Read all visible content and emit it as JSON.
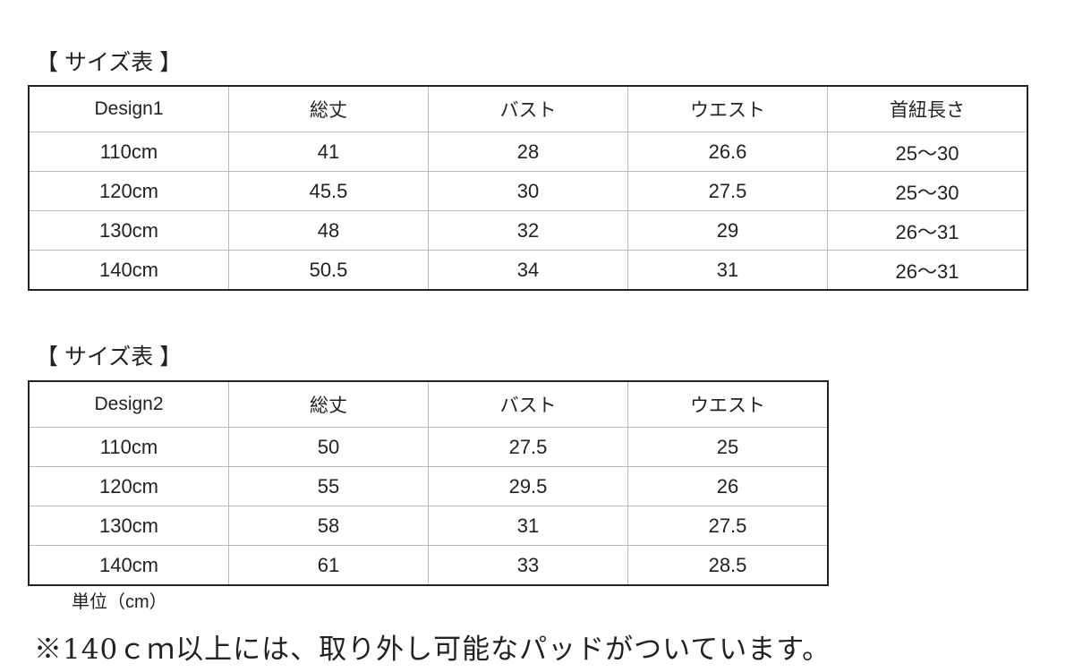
{
  "table1": {
    "title": "【 サイズ表 】",
    "headers": [
      "Design1",
      "総丈",
      "バスト",
      "ウエスト",
      "首紐長さ"
    ],
    "rows": [
      [
        "110cm",
        "41",
        "28",
        "26.6",
        "25〜30"
      ],
      [
        "120cm",
        "45.5",
        "30",
        "27.5",
        "25〜30"
      ],
      [
        "130cm",
        "48",
        "32",
        "29",
        "26〜31"
      ],
      [
        "140cm",
        "50.5",
        "34",
        "31",
        "26〜31"
      ]
    ]
  },
  "table2": {
    "title": "【 サイズ表 】",
    "headers": [
      "Design2",
      "総丈",
      "バスト",
      "ウエスト"
    ],
    "rows": [
      [
        "110cm",
        "50",
        "27.5",
        "25"
      ],
      [
        "120cm",
        "55",
        "29.5",
        "26"
      ],
      [
        "130cm",
        "58",
        "31",
        "27.5"
      ],
      [
        "140cm",
        "61",
        "33",
        "28.5"
      ]
    ]
  },
  "unit": "単位（cm）",
  "note": "※140ｃｍ以上には、取り外し可能なパッドがついています。"
}
